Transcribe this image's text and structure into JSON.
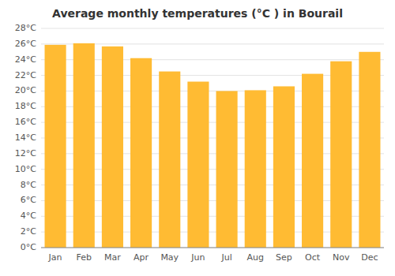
{
  "chart_data": {
    "type": "bar",
    "title": "Average monthly temperatures (°C ) in Bourail",
    "categories": [
      "Jan",
      "Feb",
      "Mar",
      "Apr",
      "May",
      "Jun",
      "Jul",
      "Aug",
      "Sep",
      "Oct",
      "Nov",
      "Dec"
    ],
    "values": [
      25.9,
      26.1,
      25.7,
      24.2,
      22.5,
      21.2,
      20.0,
      20.1,
      20.6,
      22.2,
      23.8,
      25.0
    ],
    "color": "#FFBB33",
    "ylim": [
      0,
      28
    ],
    "yticks": [
      {
        "value": 0,
        "label": "0°C"
      },
      {
        "value": 2,
        "label": "2°C"
      },
      {
        "value": 4,
        "label": "4°C"
      },
      {
        "value": 6,
        "label": "6°C"
      },
      {
        "value": 8,
        "label": "8°C"
      },
      {
        "value": 10,
        "label": "10°C"
      },
      {
        "value": 12,
        "label": "12°C"
      },
      {
        "value": 14,
        "label": "14°C"
      },
      {
        "value": 16,
        "label": "16°C"
      },
      {
        "value": 18,
        "label": "18°C"
      },
      {
        "value": 20,
        "label": "20°C"
      },
      {
        "value": 22,
        "label": "22°C"
      },
      {
        "value": 24,
        "label": "24°C"
      },
      {
        "value": 26,
        "label": "26°C"
      },
      {
        "value": 28,
        "label": "28°C"
      }
    ],
    "grid": true
  }
}
